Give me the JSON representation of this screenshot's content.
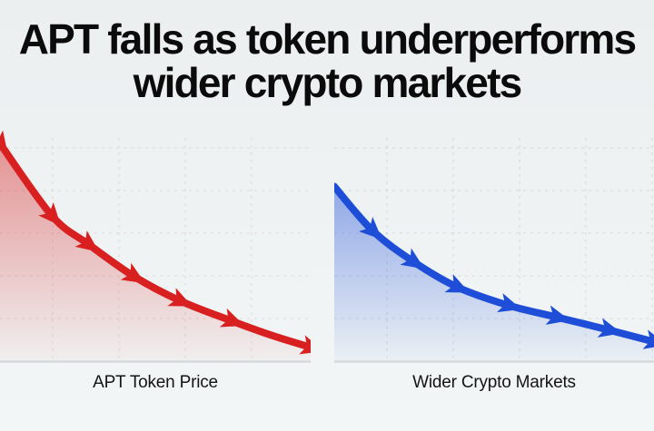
{
  "header": {
    "title_full": "APT falls as token underperforms wider crypto markets",
    "title_lines": [
      "APT falls as token underperforms",
      "wider crypto markets"
    ]
  },
  "colors": {
    "background_top": "#eceff0",
    "background_bottom": "#f2f6f6",
    "title_text": "#0b0b0c",
    "baseline": "#d5d9db"
  },
  "chart_data": [
    {
      "type": "area",
      "label": "APT Token Price",
      "trend": "declining",
      "line_color": "#d92020",
      "grid_color": "rgba(205,185,180,0.45)",
      "baseline_color": "#d5d9db",
      "x": [
        0,
        1,
        2,
        3,
        4,
        5,
        6,
        7
      ],
      "values": [
        93,
        62,
        50,
        37,
        26,
        18,
        12,
        7
      ],
      "ylim": [
        0,
        100
      ],
      "x_ticks": [],
      "y_ticks": [],
      "gridlines": "dashed",
      "legend": "none",
      "points": [
        [
          0.0,
          0.07
        ],
        [
          0.167,
          0.376
        ],
        [
          0.284,
          0.496
        ],
        [
          0.43,
          0.632
        ],
        [
          0.579,
          0.736
        ],
        [
          0.746,
          0.822
        ],
        [
          0.877,
          0.884
        ],
        [
          1.0,
          0.934
        ]
      ],
      "arrow_indices": [
        0,
        1,
        2,
        3,
        4,
        5,
        7
      ]
    },
    {
      "type": "area",
      "label": "Wider Crypto Markets",
      "trend": "declining",
      "line_color": "#1e4ed8",
      "grid_color": "rgba(175,185,205,0.45)",
      "baseline_color": "#d5d9db",
      "x": [
        0,
        1,
        2,
        3,
        4,
        5,
        6,
        7
      ],
      "values": [
        75,
        56,
        43,
        32,
        24,
        19,
        14,
        9
      ],
      "ylim": [
        0,
        100
      ],
      "x_ticks": [],
      "y_ticks": [],
      "gridlines": "dashed",
      "legend": "none",
      "points": [
        [
          0.0,
          0.252
        ],
        [
          0.119,
          0.438
        ],
        [
          0.247,
          0.57
        ],
        [
          0.384,
          0.678
        ],
        [
          0.545,
          0.756
        ],
        [
          0.696,
          0.806
        ],
        [
          0.858,
          0.86
        ],
        [
          1.0,
          0.91
        ]
      ],
      "arrow_indices": [
        1,
        2,
        3,
        4,
        5,
        6,
        7
      ]
    }
  ]
}
